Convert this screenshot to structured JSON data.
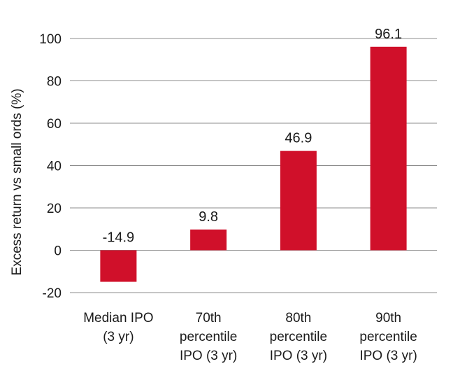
{
  "chart_data": {
    "type": "bar",
    "title": "",
    "xlabel": "",
    "ylabel": "Excess return vs small ords (%)",
    "categories": [
      [
        "Median IPO",
        "(3 yr)"
      ],
      [
        "70th",
        "percentile",
        "IPO (3 yr)"
      ],
      [
        "80th",
        "percentile",
        "IPO (3 yr)"
      ],
      [
        "90th",
        "percentile",
        "IPO (3 yr)"
      ]
    ],
    "values": [
      -14.9,
      9.8,
      46.9,
      96.1
    ],
    "data_labels": [
      "-14.9",
      "9.8",
      "46.9",
      "96.1"
    ],
    "yticks": [
      -20,
      0,
      20,
      40,
      60,
      80,
      100
    ],
    "ytick_labels": [
      "-20",
      "0",
      "20",
      "40",
      "60",
      "80",
      "100"
    ],
    "ylim": [
      -20,
      100
    ],
    "grid": true,
    "legend": "none",
    "bar_color": "#d0102a"
  }
}
